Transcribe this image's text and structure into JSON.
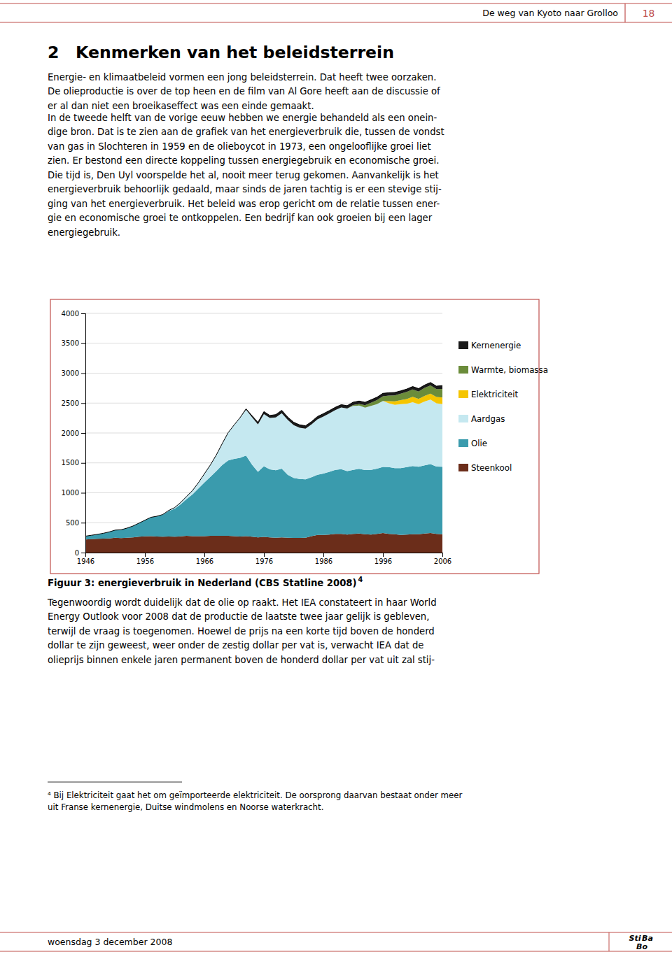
{
  "page": {
    "header_text": "De weg van Kyoto naar Grolloo",
    "page_number": "18",
    "chapter_title": "2 Kenmerken van het beleidsterrein",
    "accent_color": "#C0504D",
    "paragraphs": [
      [
        "Energie- en klimaatbeleid vormen een jong beleidsterrein. Dat heeft twee oorzaken.",
        "De olieproductie is over de top heen en de film van Al Gore heeft aan de discussie of",
        "er al dan niet een broeikaseffect was een einde gemaakt."
      ],
      [
        "In de tweede helft van de vorige eeuw hebben we energie behandeld als een onein-",
        "dige bron. Dat is te zien aan de grafiek van het energieverbruik die, tussen de vondst",
        "van gas in Slochteren in 1959 en de olieboycot in 1973, een ongelooflijke groei liet",
        "zien. Er bestond een directe koppeling tussen energiegebruik en economische groei.",
        "Die tijd is, Den Uyl voorspelde het al, nooit meer terug gekomen. Aanvankelijk is het",
        "energieverbruik behoorlijk gedaald, maar sinds de jaren tachtig is er een stevige stij-",
        "ging van het energieverbruik. Het beleid was erop gericht om de relatie tussen ener-",
        "gie en economische groei te ontkoppelen. Een bedrijf kan ook groeien bij een lager",
        "energiegebruik."
      ],
      [
        "Tegenwoordig wordt duidelijk dat de olie op raakt. Het IEA constateert in haar World",
        "Energy Outlook voor 2008 dat de productie de laatste twee jaar gelijk is gebleven,",
        "terwijl de vraag is toegenomen. Hoewel de prijs na een korte tijd boven de honderd",
        "dollar te zijn geweest, weer onder de zestig dollar per vat is, verwacht IEA dat de",
        "olieprijs binnen enkele jaren permanent boven de honderd dollar per vat uit zal stij-"
      ]
    ],
    "footnote": [
      "⁴ Bij Elektriciteit gaat het om geïmporteerde elektriciteit. De oorsprong daarvan bestaat onder meer",
      "uit Franse kernenergie, Duitse windmolens en Noorse waterkracht."
    ],
    "footer_date": "woensdag 3 december 2008",
    "logo": [
      "Sti",
      "Ba",
      "Bo"
    ]
  },
  "chart_data": {
    "type": "area",
    "stacked": true,
    "title": "Figuur 3: energieverbruik in Nederland (CBS Statline 2008)",
    "annotations": [
      "4"
    ],
    "x": [
      1946,
      1947,
      1948,
      1949,
      1950,
      1951,
      1952,
      1953,
      1954,
      1955,
      1956,
      1957,
      1958,
      1959,
      1960,
      1961,
      1962,
      1963,
      1964,
      1965,
      1966,
      1967,
      1968,
      1969,
      1970,
      1971,
      1972,
      1973,
      1974,
      1975,
      1976,
      1977,
      1978,
      1979,
      1980,
      1981,
      1982,
      1983,
      1984,
      1985,
      1986,
      1987,
      1988,
      1989,
      1990,
      1991,
      1992,
      1993,
      1994,
      1995,
      1996,
      1997,
      1998,
      1999,
      2000,
      2001,
      2002,
      2003,
      2004,
      2005,
      2006
    ],
    "series": [
      {
        "name": "Steenkool",
        "color": "#6B2D1A",
        "values": [
          220,
          225,
          230,
          235,
          238,
          248,
          242,
          248,
          255,
          265,
          272,
          275,
          270,
          265,
          270,
          265,
          272,
          282,
          275,
          275,
          275,
          282,
          282,
          282,
          282,
          275,
          270,
          275,
          265,
          255,
          262,
          255,
          250,
          255,
          250,
          245,
          245,
          250,
          275,
          295,
          295,
          302,
          312,
          312,
          302,
          312,
          318,
          308,
          302,
          312,
          328,
          312,
          308,
          295,
          302,
          308,
          308,
          318,
          328,
          312,
          308
        ]
      },
      {
        "name": "Olie",
        "color": "#3A9BAD",
        "values": [
          55,
          65,
          75,
          88,
          108,
          128,
          140,
          162,
          190,
          228,
          270,
          315,
          338,
          370,
          425,
          470,
          535,
          612,
          698,
          798,
          898,
          985,
          1082,
          1182,
          1260,
          1292,
          1315,
          1348,
          1205,
          1095,
          1182,
          1138,
          1128,
          1148,
          1050,
          1005,
          985,
          975,
          985,
          1005,
          1028,
          1050,
          1072,
          1082,
          1062,
          1072,
          1082,
          1072,
          1082,
          1092,
          1105,
          1118,
          1105,
          1118,
          1128,
          1140,
          1128,
          1140,
          1152,
          1128,
          1128
        ]
      },
      {
        "name": "Aardgas",
        "color": "#C5E8F0",
        "values": [
          0,
          0,
          0,
          0,
          0,
          0,
          0,
          0,
          0,
          0,
          0,
          0,
          0,
          2,
          10,
          18,
          30,
          45,
          65,
          98,
          145,
          198,
          268,
          360,
          465,
          568,
          672,
          765,
          792,
          792,
          872,
          858,
          882,
          928,
          918,
          882,
          858,
          848,
          882,
          928,
          952,
          975,
          998,
          1032,
          1045,
          1068,
          1058,
          1045,
          1068,
          1078,
          1102,
          1068,
          1058,
          1068,
          1058,
          1068,
          1045,
          1068,
          1078,
          1058,
          1045
        ]
      },
      {
        "name": "Elektriciteit",
        "color": "#F5C500",
        "values": [
          0,
          0,
          0,
          0,
          0,
          0,
          0,
          0,
          0,
          0,
          0,
          0,
          0,
          0,
          0,
          0,
          0,
          0,
          0,
          0,
          0,
          0,
          0,
          0,
          0,
          0,
          0,
          0,
          0,
          0,
          0,
          0,
          0,
          0,
          0,
          0,
          0,
          0,
          0,
          0,
          0,
          0,
          0,
          0,
          0,
          0,
          0,
          0,
          0,
          0,
          0,
          35,
          58,
          68,
          80,
          88,
          88,
          95,
          100,
          105,
          112
        ]
      },
      {
        "name": "Warmte, biomassa",
        "color": "#6B8C3A",
        "values": [
          0,
          0,
          0,
          0,
          0,
          0,
          0,
          0,
          0,
          0,
          0,
          0,
          0,
          0,
          0,
          0,
          0,
          0,
          0,
          0,
          0,
          0,
          0,
          0,
          0,
          0,
          0,
          0,
          0,
          0,
          0,
          0,
          0,
          0,
          0,
          0,
          0,
          0,
          0,
          0,
          0,
          0,
          0,
          0,
          0,
          15,
          28,
          40,
          55,
          68,
          80,
          92,
          100,
          108,
          118,
          125,
          125,
          132,
          138,
          132,
          145
        ]
      },
      {
        "name": "Kernenergie",
        "color": "#1A1A1A",
        "values": [
          0,
          0,
          0,
          0,
          0,
          0,
          0,
          0,
          0,
          0,
          0,
          0,
          0,
          0,
          0,
          0,
          0,
          0,
          0,
          0,
          0,
          0,
          0,
          0,
          0,
          0,
          0,
          15,
          28,
          35,
          42,
          42,
          48,
          48,
          48,
          48,
          48,
          48,
          48,
          48,
          48,
          48,
          48,
          48,
          48,
          48,
          48,
          48,
          48,
          48,
          48,
          48,
          48,
          48,
          48,
          48,
          48,
          48,
          48,
          48,
          55
        ]
      }
    ],
    "xlim": [
      1946,
      2006
    ],
    "xticks": [
      1946,
      1956,
      1966,
      1976,
      1986,
      1996,
      2006
    ],
    "ylim": [
      0,
      4000
    ],
    "yticks": [
      0,
      500,
      1000,
      1500,
      2000,
      2500,
      3000,
      3500,
      4000
    ],
    "grid": true,
    "legend": "right"
  }
}
